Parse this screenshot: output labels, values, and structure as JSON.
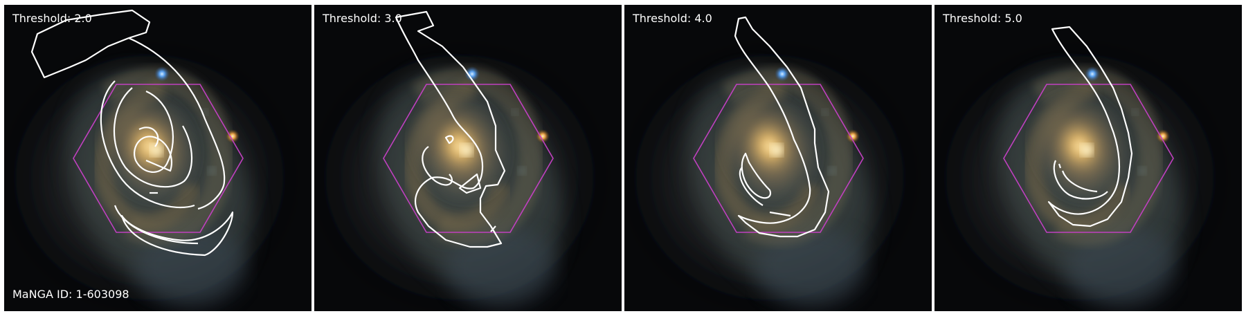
{
  "panels": [
    {
      "threshold_label": "Threshold: 2.0"
    },
    {
      "threshold_label": "Threshold: 3.0"
    },
    {
      "threshold_label": "Threshold: 4.0"
    },
    {
      "threshold_label": "Threshold: 5.0"
    }
  ],
  "manga_id_label": "MaNGA ID: 1-603098",
  "colors": {
    "hexagon": "#c040c0",
    "contour": "#ffffff",
    "background": "#050608",
    "galaxy_core": "#f3c46e",
    "blue_star": "#5aa8ff",
    "orange_star": "#ffb04a"
  }
}
